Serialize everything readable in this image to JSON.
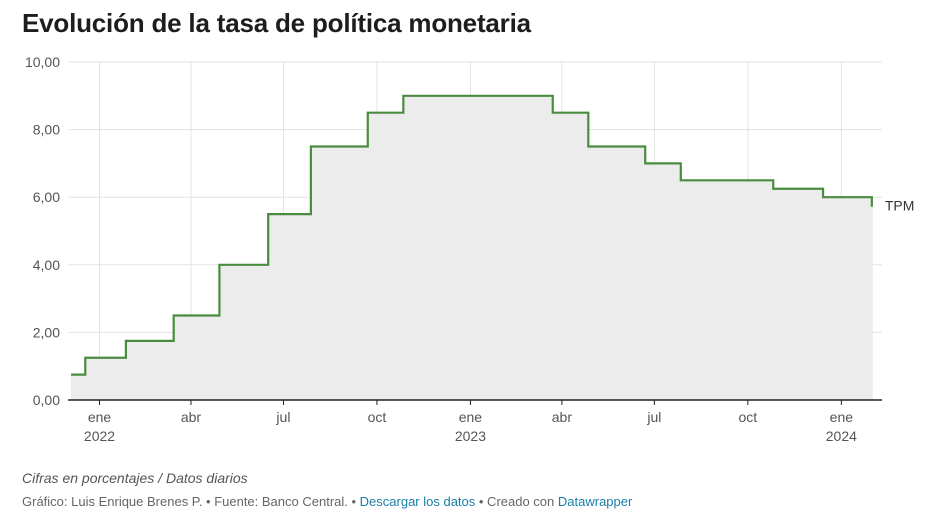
{
  "title": "Evolución de la tasa de política monetaria",
  "notes": "Cifras en porcentajes / Datos diarios",
  "footer": {
    "credit": "Gráfico: Luis Enrique Brenes P. • Fuente: Banco Central. • ",
    "download_link": "Descargar los datos",
    "created_with": " • Creado con ",
    "datawrapper_link": "Datawrapper"
  },
  "colors": {
    "line": "#4a8c3f",
    "area": "#ececec",
    "grid": "#e3e3e3",
    "axis": "#222222",
    "tick_text": "#555555"
  },
  "chart_data": {
    "type": "area",
    "title": "Evolución de la tasa de política monetaria",
    "series_label": "TPM",
    "ylim": [
      0,
      10
    ],
    "xlim": [
      "2021-12-01",
      "2024-02-10"
    ],
    "grid": true,
    "y_ticks": [
      {
        "value": 0,
        "label": "0,00"
      },
      {
        "value": 2,
        "label": "2,00"
      },
      {
        "value": 4,
        "label": "4,00"
      },
      {
        "value": 6,
        "label": "6,00"
      },
      {
        "value": 8,
        "label": "8,00"
      },
      {
        "value": 10,
        "label": "10,00"
      }
    ],
    "x_ticks": [
      {
        "date": "2022-01-01",
        "label": "ene",
        "year": "2022"
      },
      {
        "date": "2022-04-01",
        "label": "abr",
        "year": ""
      },
      {
        "date": "2022-07-01",
        "label": "jul",
        "year": ""
      },
      {
        "date": "2022-10-01",
        "label": "oct",
        "year": ""
      },
      {
        "date": "2023-01-01",
        "label": "ene",
        "year": "2023"
      },
      {
        "date": "2023-04-01",
        "label": "abr",
        "year": ""
      },
      {
        "date": "2023-07-01",
        "label": "jul",
        "year": ""
      },
      {
        "date": "2023-10-01",
        "label": "oct",
        "year": ""
      },
      {
        "date": "2024-01-01",
        "label": "ene",
        "year": "2024"
      }
    ],
    "steps": [
      {
        "date": "2021-12-04",
        "value": 0.75
      },
      {
        "date": "2021-12-18",
        "value": 1.25
      },
      {
        "date": "2022-01-27",
        "value": 1.75
      },
      {
        "date": "2022-03-15",
        "value": 2.5
      },
      {
        "date": "2022-04-29",
        "value": 4.0
      },
      {
        "date": "2022-06-16",
        "value": 5.5
      },
      {
        "date": "2022-07-28",
        "value": 7.5
      },
      {
        "date": "2022-09-22",
        "value": 8.5
      },
      {
        "date": "2022-10-27",
        "value": 9.0
      },
      {
        "date": "2023-03-23",
        "value": 8.5
      },
      {
        "date": "2023-04-27",
        "value": 7.5
      },
      {
        "date": "2023-06-22",
        "value": 7.0
      },
      {
        "date": "2023-07-27",
        "value": 6.5
      },
      {
        "date": "2023-10-26",
        "value": 6.25
      },
      {
        "date": "2023-12-14",
        "value": 6.0
      },
      {
        "date": "2024-01-31",
        "value": 5.75
      }
    ],
    "end_date": "2024-02-01"
  }
}
